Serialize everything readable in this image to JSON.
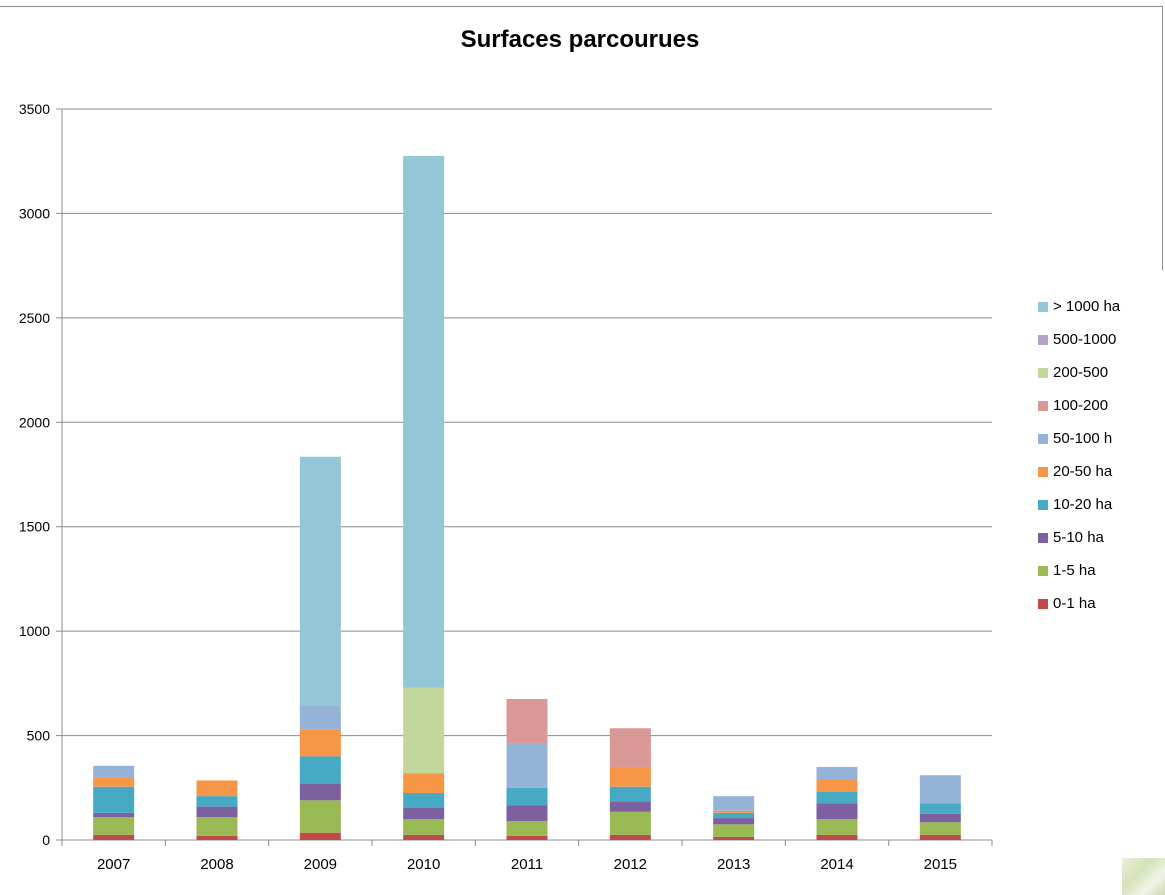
{
  "chart_data": {
    "type": "bar",
    "stacked": true,
    "title": "Surfaces parcourues",
    "xlabel": "",
    "ylabel": "",
    "ylim": [
      0,
      3500
    ],
    "yticks": [
      0,
      500,
      1000,
      1500,
      2000,
      2500,
      3000,
      3500
    ],
    "grid": true,
    "legend_position": "right",
    "categories": [
      "2007",
      "2008",
      "2009",
      "2010",
      "2011",
      "2012",
      "2013",
      "2014",
      "2015"
    ],
    "series": [
      {
        "name": "0-1 ha",
        "color": "#be4b48",
        "values": [
          25,
          20,
          35,
          25,
          20,
          25,
          15,
          25,
          25
        ]
      },
      {
        "name": "1-5 ha",
        "color": "#98b954",
        "values": [
          85,
          90,
          155,
          75,
          70,
          110,
          60,
          75,
          60
        ]
      },
      {
        "name": "5-10 ha",
        "color": "#7d60a0",
        "values": [
          20,
          50,
          80,
          55,
          75,
          50,
          30,
          75,
          40
        ]
      },
      {
        "name": "10-20 ha",
        "color": "#46aac5",
        "values": [
          125,
          50,
          130,
          70,
          85,
          70,
          25,
          55,
          50
        ]
      },
      {
        "name": "20-50 ha",
        "color": "#f79646",
        "values": [
          45,
          75,
          130,
          95,
          0,
          95,
          10,
          60,
          0
        ]
      },
      {
        "name": "50-100 ha",
        "color": "#95b3d7",
        "values": [
          55,
          0,
          115,
          0,
          210,
          0,
          70,
          60,
          135
        ]
      },
      {
        "name": "100-200 ha",
        "color": "#d99795",
        "values": [
          0,
          0,
          0,
          0,
          215,
          185,
          0,
          0,
          0
        ]
      },
      {
        "name": "200-500 ha",
        "color": "#c3d69b",
        "values": [
          0,
          0,
          0,
          410,
          0,
          0,
          0,
          0,
          0
        ]
      },
      {
        "name": "500-1000 ha",
        "color": "#b3a2c7",
        "values": [
          0,
          0,
          0,
          0,
          0,
          0,
          0,
          0,
          0
        ]
      },
      {
        "name": "> 1000 ha",
        "color": "#93c6d6",
        "values": [
          0,
          0,
          1190,
          2545,
          0,
          0,
          0,
          0,
          0
        ]
      }
    ],
    "legend_labels": [
      "> 1000 ha",
      "500-1000",
      "200-500",
      "100-200",
      "50-100 h",
      "20-50 ha",
      "10-20 ha",
      "5-10 ha",
      "1-5 ha",
      "0-1 ha"
    ],
    "legend_colors": [
      "#93c6d6",
      "#b3a2c7",
      "#c3d69b",
      "#d99795",
      "#95b3d7",
      "#f79646",
      "#46aac5",
      "#7d60a0",
      "#98b954",
      "#be4b48"
    ]
  }
}
